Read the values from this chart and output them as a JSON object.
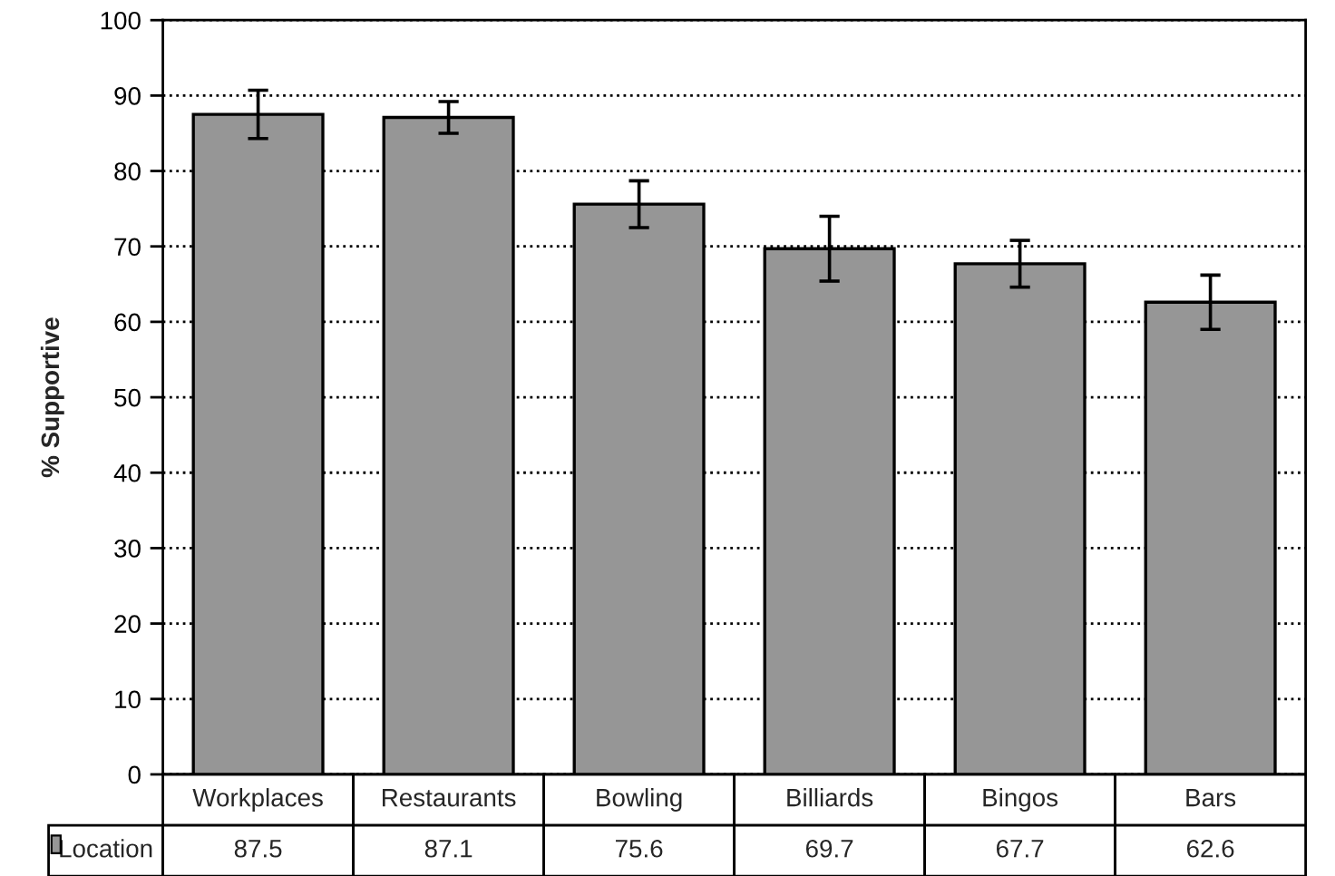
{
  "chart_data": {
    "type": "bar",
    "ylabel": "% Supportive",
    "categories": [
      "Workplaces",
      "Restaurants",
      "Bowling",
      "Billiards",
      "Bingos",
      "Bars"
    ],
    "series": [
      {
        "name": "Location",
        "color": "#969696",
        "values": [
          87.5,
          87.1,
          75.6,
          69.7,
          67.7,
          62.6
        ],
        "errors": [
          3.2,
          2.1,
          3.1,
          4.3,
          3.1,
          3.6
        ]
      }
    ],
    "ylim": [
      0,
      100
    ],
    "yticks": [
      0,
      10,
      20,
      30,
      40,
      50,
      60,
      70,
      80,
      90,
      100
    ],
    "grid": "y",
    "line_style": "dotted",
    "data_labels": true
  }
}
